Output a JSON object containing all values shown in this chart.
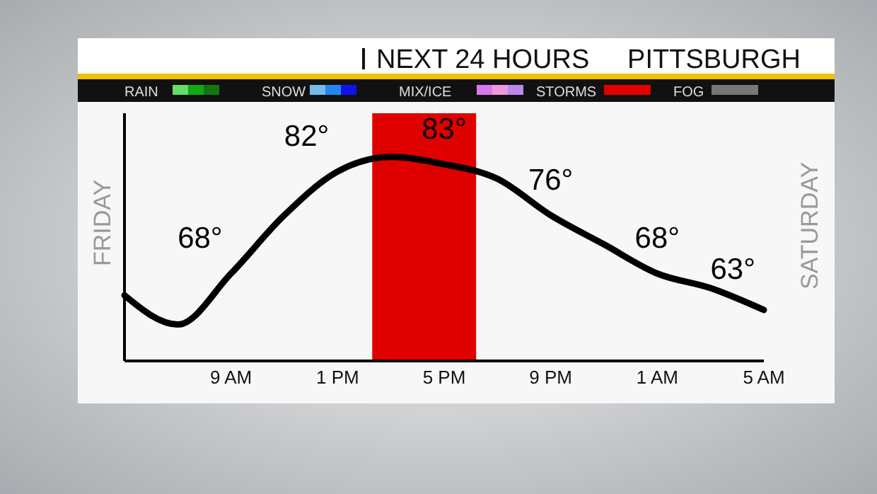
{
  "chart_data": {
    "type": "line",
    "title": "NEXT 24 HOURS",
    "subtitle": "PITTSBURGH",
    "annotations": [
      "RAIN",
      "SNOW",
      "MIX/ICE",
      "STORMS",
      "FOG",
      "FRIDAY",
      "SATURDAY"
    ],
    "categories": [
      null,
      null,
      "9 AM",
      null,
      "1 PM",
      null,
      "5 PM",
      null,
      "9 PM",
      null,
      "1 AM",
      null,
      "5 AM"
    ],
    "series": [
      {
        "color": "#000000",
        "values": [
          65,
          61,
          68,
          76,
          82,
          84,
          83,
          81,
          76,
          72,
          68,
          66,
          63
        ],
        "value_labels": [
          null,
          null,
          "68°",
          null,
          "82°",
          null,
          "83°",
          null,
          "76°",
          null,
          "68°",
          null,
          "63°"
        ]
      }
    ],
    "ylim": [
      56,
      90
    ],
    "tick_labels": "x",
    "marker": "none",
    "line_style": "solid"
  }
}
